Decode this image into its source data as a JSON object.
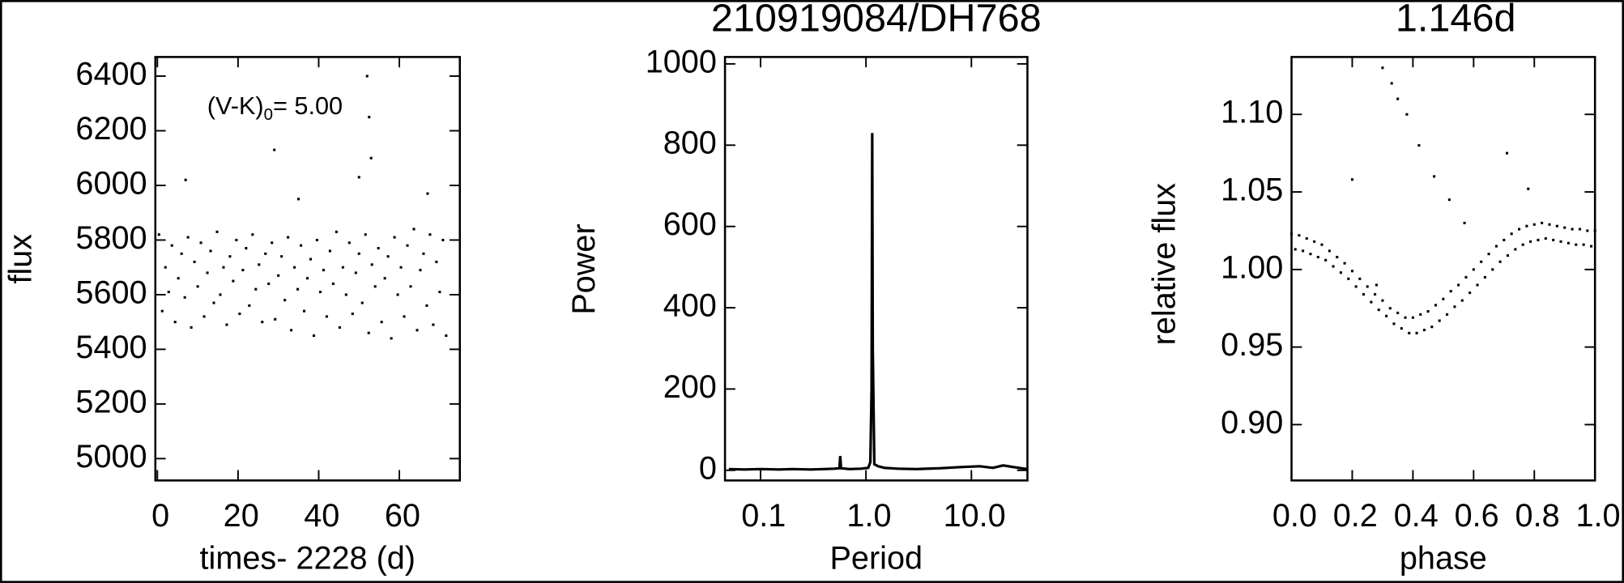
{
  "chart_data": [
    {
      "type": "scatter",
      "xlabel": "times- 2228 (d)",
      "ylabel": "flux",
      "annotation": {
        "text": "(V-K)",
        "subscript": "0",
        "suffix": "= 5.00"
      },
      "xlim": [
        -0.5,
        75
      ],
      "xticks": [
        0,
        20,
        40,
        60
      ],
      "ylim": [
        4920,
        6470
      ],
      "yticks": [
        5000,
        5200,
        5400,
        5600,
        5800,
        6000,
        6200,
        6400
      ],
      "series": [
        {
          "color": "#000000",
          "x": [
            0.4,
            1.2,
            2,
            2.8,
            3.6,
            4.4,
            5.2,
            6,
            6.8,
            7.6,
            8.4,
            9.2,
            10,
            10.8,
            11.6,
            12.4,
            13.2,
            14,
            14.8,
            15.6,
            16.4,
            17.2,
            18,
            18.8,
            19.6,
            20.4,
            21.2,
            22,
            22.8,
            23.6,
            24.4,
            25.2,
            26,
            26.8,
            27.6,
            28.4,
            29.2,
            30,
            30.8,
            31.6,
            32.4,
            33.2,
            34,
            34.8,
            35.6,
            36.4,
            37.2,
            38,
            38.8,
            39.6,
            40.4,
            41.2,
            42,
            42.8,
            43.6,
            44.4,
            45.2,
            46,
            46.8,
            47.6,
            48.4,
            49.2,
            50,
            50.8,
            51.6,
            52.4,
            53.2,
            54,
            54.8,
            55.6,
            56.4,
            57.2,
            58,
            58.8,
            59.6,
            60.4,
            61.2,
            62,
            62.8,
            63.6,
            64.4,
            65.2,
            66,
            66.8,
            67.6,
            68.4,
            69.2,
            70,
            70.8,
            71.6,
            7,
            29,
            35,
            50,
            52,
            52.5,
            53,
            67
          ],
          "values": [
            5820,
            5540,
            5700,
            5610,
            5780,
            5500,
            5660,
            5750,
            5590,
            5810,
            5480,
            5720,
            5630,
            5790,
            5520,
            5680,
            5760,
            5570,
            5830,
            5600,
            5700,
            5490,
            5740,
            5650,
            5800,
            5530,
            5690,
            5770,
            5560,
            5820,
            5620,
            5710,
            5500,
            5750,
            5640,
            5790,
            5510,
            5670,
            5740,
            5580,
            5810,
            5470,
            5700,
            5620,
            5780,
            5540,
            5660,
            5730,
            5450,
            5800,
            5610,
            5690,
            5520,
            5760,
            5640,
            5830,
            5480,
            5700,
            5600,
            5790,
            5530,
            5680,
            5750,
            5570,
            5820,
            5460,
            5710,
            5630,
            5770,
            5500,
            5660,
            5740,
            5440,
            5810,
            5600,
            5700,
            5520,
            5780,
            5630,
            5840,
            5470,
            5690,
            5750,
            5560,
            5820,
            5490,
            5720,
            5610,
            5800,
            5450,
            6020,
            6130,
            5950,
            6030,
            6400,
            6250,
            6100,
            5970
          ]
        }
      ]
    },
    {
      "type": "line",
      "title": "210919084/DH768",
      "xlabel": "Period",
      "ylabel": "Power",
      "xlog": true,
      "xlim": [
        0.046,
        34
      ],
      "xticks": [
        0.1,
        {
          "value": 1,
          "label": "1.0"
        },
        {
          "value": 10,
          "label": "10.0"
        }
      ],
      "ylim": [
        -25,
        1017
      ],
      "yticks": [
        0,
        200,
        400,
        600,
        800,
        1000
      ],
      "series": [
        {
          "color": "#000000",
          "x": [
            0.05,
            0.07,
            0.1,
            0.15,
            0.2,
            0.3,
            0.4,
            0.5,
            0.56,
            0.57,
            0.58,
            0.7,
            0.9,
            1.05,
            1.1,
            1.13,
            1.146,
            1.16,
            1.2,
            1.3,
            1.5,
            2,
            3,
            5,
            8,
            12,
            16,
            20,
            25,
            30,
            34
          ],
          "values": [
            3,
            2,
            3,
            2,
            3,
            2,
            3,
            4,
            5,
            35,
            5,
            3,
            4,
            6,
            20,
            200,
            830,
            300,
            15,
            10,
            6,
            4,
            3,
            5,
            8,
            10,
            6,
            12,
            8,
            5,
            3
          ]
        }
      ]
    },
    {
      "type": "scatter",
      "title": "1.146d",
      "xlabel": "phase",
      "ylabel": "relative flux",
      "xlim": [
        0,
        1
      ],
      "xticks": [
        {
          "value": 0,
          "label": "0.0"
        },
        0.2,
        0.4,
        0.6,
        0.8,
        {
          "value": 1,
          "label": "1.0"
        }
      ],
      "ylim": [
        0.864,
        1.137
      ],
      "yticks": [
        {
          "value": 0.9,
          "label": "0.90"
        },
        0.95,
        {
          "value": 1,
          "label": "1.00"
        },
        1.05,
        {
          "value": 1.1,
          "label": "1.10"
        }
      ],
      "series": [
        {
          "color": "#000000",
          "x": [
            0,
            0.025,
            0.05,
            0.075,
            0.1,
            0.125,
            0.15,
            0.175,
            0.2,
            0.225,
            0.25,
            0.275,
            0.3,
            0.325,
            0.35,
            0.375,
            0.4,
            0.425,
            0.45,
            0.475,
            0.5,
            0.525,
            0.55,
            0.575,
            0.6,
            0.625,
            0.65,
            0.675,
            0.7,
            0.725,
            0.75,
            0.775,
            0.8,
            0.825,
            0.85,
            0.875,
            0.9,
            0.925,
            0.95,
            0.975,
            1,
            0.0125,
            0.0375,
            0.0625,
            0.0875,
            0.1125,
            0.1375,
            0.1625,
            0.1875,
            0.2125,
            0.2375,
            0.2625,
            0.2875,
            0.3125,
            0.3375,
            0.3625,
            0.3875,
            0.4125,
            0.4375,
            0.4625,
            0.4875,
            0.5125,
            0.5375,
            0.5625,
            0.5875,
            0.6125,
            0.6375,
            0.6625,
            0.6875,
            0.7125,
            0.7375,
            0.7625,
            0.7875,
            0.8125,
            0.8375,
            0.8625,
            0.8875,
            0.9125,
            0.9375,
            0.9625,
            0.9875,
            0.3,
            0.33,
            0.35,
            0.38,
            0.42,
            0.47,
            0.52,
            0.57,
            0.2,
            0.71,
            0.78,
            0.28
          ],
          "values": [
            1.023,
            1.022,
            1.02,
            1.018,
            1.016,
            1.012,
            1.008,
            1.004,
            0.999,
            0.994,
            0.989,
            0.984,
            0.98,
            0.975,
            0.972,
            0.969,
            0.969,
            0.971,
            0.973,
            0.977,
            0.981,
            0.986,
            0.99,
            0.995,
            1,
            1.005,
            1.01,
            1.015,
            1.019,
            1.023,
            1.026,
            1.028,
            1.029,
            1.03,
            1.029,
            1.028,
            1.027,
            1.026,
            1.026,
            1.025,
            1.025,
            1.013,
            1.012,
            1.01,
            1.008,
            1.006,
            1.002,
            0.998,
            0.994,
            0.989,
            0.984,
            0.979,
            0.974,
            0.97,
            0.965,
            0.962,
            0.959,
            0.959,
            0.961,
            0.963,
            0.967,
            0.971,
            0.976,
            0.98,
            0.985,
            0.99,
            0.995,
            1,
            1.005,
            1.009,
            1.013,
            1.016,
            1.018,
            1.019,
            1.02,
            1.019,
            1.018,
            1.017,
            1.016,
            1.016,
            1.015,
            1.13,
            1.12,
            1.11,
            1.1,
            1.08,
            1.06,
            1.045,
            1.03,
            1.058,
            1.075,
            1.052,
            0.99
          ]
        }
      ]
    }
  ]
}
